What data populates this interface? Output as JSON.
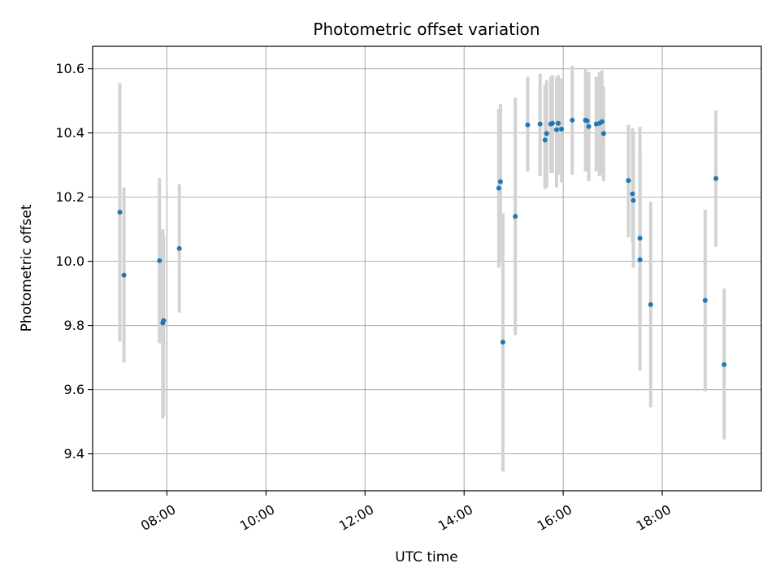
{
  "chart_data": {
    "type": "scatter",
    "title": "Photometric offset variation",
    "xlabel": "UTC time",
    "ylabel": "Photometric offset",
    "x_unit": "hours UTC",
    "xlim": [
      "06:30",
      "20:00"
    ],
    "ylim": [
      9.285,
      10.67
    ],
    "x_ticks": [
      "08:00",
      "10:00",
      "12:00",
      "14:00",
      "16:00",
      "18:00"
    ],
    "y_ticks": [
      9.4,
      9.6,
      9.8,
      10.0,
      10.2,
      10.4,
      10.6
    ],
    "y_tick_labels": [
      "9.4",
      "9.6",
      "9.8",
      "10.0",
      "10.2",
      "10.4",
      "10.6"
    ],
    "grid": true,
    "colors": {
      "marker": "#1f77b4",
      "errorbar": "#d3d3d3",
      "grid": "#b0b0b0"
    },
    "points": [
      {
        "x": "07:03",
        "y": 10.153,
        "lo": 9.75,
        "hi": 10.555
      },
      {
        "x": "07:08",
        "y": 9.957,
        "lo": 9.685,
        "hi": 10.23
      },
      {
        "x": "07:51",
        "y": 10.002,
        "lo": 9.745,
        "hi": 10.26
      },
      {
        "x": "07:55",
        "y": 9.808,
        "lo": 9.51,
        "hi": 10.1
      },
      {
        "x": "07:56",
        "y": 9.815,
        "lo": 9.52,
        "hi": 10.08
      },
      {
        "x": "08:15",
        "y": 10.04,
        "lo": 9.84,
        "hi": 10.24
      },
      {
        "x": "14:42",
        "y": 10.228,
        "lo": 9.98,
        "hi": 10.475
      },
      {
        "x": "14:44",
        "y": 10.248,
        "lo": 10.0,
        "hi": 10.49
      },
      {
        "x": "14:47",
        "y": 9.748,
        "lo": 9.345,
        "hi": 10.15
      },
      {
        "x": "15:02",
        "y": 10.14,
        "lo": 9.77,
        "hi": 10.51
      },
      {
        "x": "15:17",
        "y": 10.425,
        "lo": 10.28,
        "hi": 10.575
      },
      {
        "x": "15:32",
        "y": 10.428,
        "lo": 10.265,
        "hi": 10.585
      },
      {
        "x": "15:38",
        "y": 10.378,
        "lo": 10.225,
        "hi": 10.55
      },
      {
        "x": "15:40",
        "y": 10.398,
        "lo": 10.23,
        "hi": 10.565
      },
      {
        "x": "15:45",
        "y": 10.428,
        "lo": 10.275,
        "hi": 10.575
      },
      {
        "x": "15:47",
        "y": 10.43,
        "lo": 10.275,
        "hi": 10.58
      },
      {
        "x": "15:52",
        "y": 10.41,
        "lo": 10.23,
        "hi": 10.575
      },
      {
        "x": "15:54",
        "y": 10.43,
        "lo": 10.27,
        "hi": 10.58
      },
      {
        "x": "15:58",
        "y": 10.412,
        "lo": 10.245,
        "hi": 10.57
      },
      {
        "x": "16:11",
        "y": 10.44,
        "lo": 10.27,
        "hi": 10.61
      },
      {
        "x": "16:27",
        "y": 10.44,
        "lo": 10.28,
        "hi": 10.6
      },
      {
        "x": "16:29",
        "y": 10.438,
        "lo": 10.285,
        "hi": 10.59
      },
      {
        "x": "16:31",
        "y": 10.42,
        "lo": 10.25,
        "hi": 10.59
      },
      {
        "x": "16:40",
        "y": 10.428,
        "lo": 10.28,
        "hi": 10.575
      },
      {
        "x": "16:44",
        "y": 10.43,
        "lo": 10.265,
        "hi": 10.59
      },
      {
        "x": "16:47",
        "y": 10.435,
        "lo": 10.27,
        "hi": 10.595
      },
      {
        "x": "16:49",
        "y": 10.398,
        "lo": 10.25,
        "hi": 10.545
      },
      {
        "x": "17:19",
        "y": 10.252,
        "lo": 10.075,
        "hi": 10.425
      },
      {
        "x": "17:24",
        "y": 10.21,
        "lo": 10.06,
        "hi": 10.415
      },
      {
        "x": "17:25",
        "y": 10.19,
        "lo": 9.98,
        "hi": 10.4
      },
      {
        "x": "17:33",
        "y": 10.072,
        "lo": 9.8,
        "hi": 10.345
      },
      {
        "x": "17:33",
        "y": 10.005,
        "lo": 9.66,
        "hi": 10.42
      },
      {
        "x": "17:46",
        "y": 9.865,
        "lo": 9.545,
        "hi": 10.185
      },
      {
        "x": "18:52",
        "y": 9.878,
        "lo": 9.595,
        "hi": 10.16
      },
      {
        "x": "19:05",
        "y": 10.258,
        "lo": 10.045,
        "hi": 10.47
      },
      {
        "x": "19:15",
        "y": 9.678,
        "lo": 9.445,
        "hi": 9.915
      }
    ]
  }
}
